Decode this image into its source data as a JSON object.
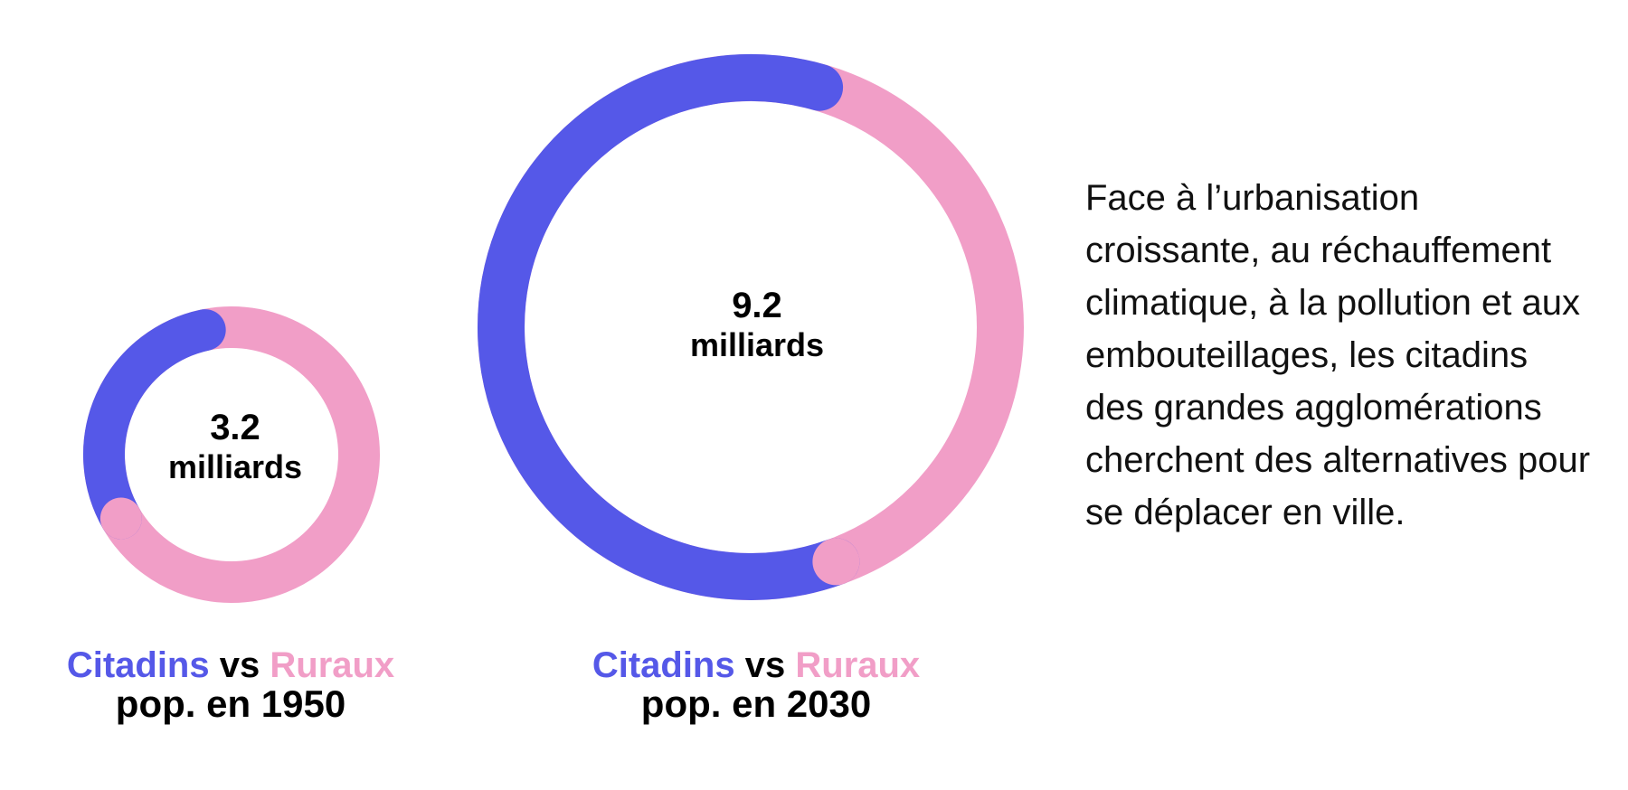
{
  "colors": {
    "citadins": "#5558e8",
    "ruraux": "#f19ec7",
    "text": "#000000"
  },
  "chart_data": [
    {
      "type": "pie",
      "style": "donut",
      "center_value": "3.2",
      "center_unit": "milliards",
      "caption": {
        "citadins_label": "Citadins",
        "vs_label": "vs",
        "ruraux_label": "Ruraux",
        "line2": "pop. en 1950"
      },
      "series": [
        {
          "name": "Citadins",
          "value": 0.3,
          "color": "#5558e8"
        },
        {
          "name": "Ruraux",
          "value": 0.7,
          "color": "#f19ec7"
        }
      ]
    },
    {
      "type": "pie",
      "style": "donut",
      "center_value": "9.2",
      "center_unit": "milliards",
      "caption": {
        "citadins_label": "Citadins",
        "vs_label": "vs",
        "ruraux_label": "Ruraux",
        "line2": "pop. en 2030"
      },
      "series": [
        {
          "name": "Citadins",
          "value": 0.6,
          "color": "#5558e8"
        },
        {
          "name": "Ruraux",
          "value": 0.4,
          "color": "#f19ec7"
        }
      ]
    }
  ],
  "description_text": "Face à l’urbanisation croissante, au réchauffement climatique, à la pollution et aux embouteillages, les citadins des grandes agglomérations cherchent des alternatives pour se déplacer en ville."
}
